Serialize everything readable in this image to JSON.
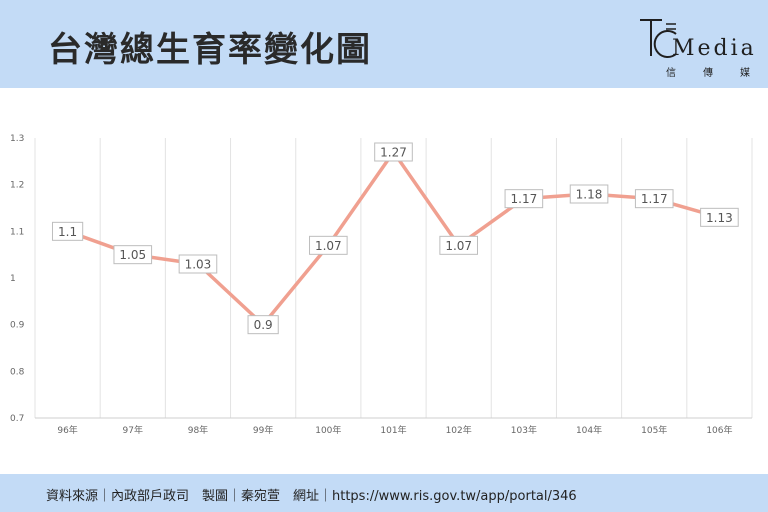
{
  "header": {
    "title": "台灣總生育率變化圖",
    "logo": {
      "word": "Media",
      "sub": [
        "信",
        "傳",
        "媒"
      ]
    }
  },
  "footer": {
    "text": "資料來源｜內政部戶政司　製圖｜秦宛萱　網址｜https://www.ris.gov.tw/app/portal/346"
  },
  "colors": {
    "band": "#c3dbf6",
    "line": "#f0a090",
    "grid": "#e3e3e3"
  },
  "chart_data": {
    "type": "line",
    "categories": [
      "96年",
      "97年",
      "98年",
      "99年",
      "100年",
      "101年",
      "102年",
      "103年",
      "104年",
      "105年",
      "106年"
    ],
    "series": [
      {
        "values": [
          1.1,
          1.05,
          1.03,
          0.9,
          1.07,
          1.27,
          1.07,
          1.17,
          1.18,
          1.17,
          1.13
        ]
      }
    ],
    "value_labels": [
      "1.1",
      "1.05",
      "1.03",
      "0.9",
      "1.07",
      "1.27",
      "1.07",
      "1.17",
      "1.18",
      "1.17",
      "1.13"
    ],
    "yticks": [
      "0.7",
      "0.8",
      "0.9",
      "1",
      "1.1",
      "1.2",
      "1.3"
    ],
    "ylim": [
      0.7,
      1.3
    ],
    "grid": "vertical",
    "legend": "none"
  }
}
